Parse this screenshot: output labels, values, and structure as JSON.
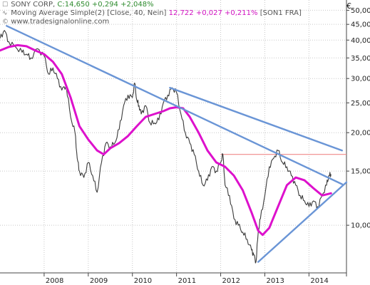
{
  "legend": {
    "line1_name": "SONY CORP,",
    "line1_values": "C:14,650 +0,294 +2,048%",
    "line2_name": "Moving Average Simple(2) [Close, 40, Nein]",
    "line2_values": "12,722 +0,027 +0,211%",
    "line2_tag": "[SON1 FRA]",
    "line3": "www.tradesignalonline.com"
  },
  "colors": {
    "price": "#3a3a3a",
    "moving_average": "#dd11cc",
    "trendline": "#6a95d6",
    "horizontal_line": "#f08a8a",
    "grid": "#c8c8c8"
  },
  "chart_data": {
    "type": "line",
    "title": "SONY CORP",
    "currency_label": "€",
    "scale": "log",
    "grid": true,
    "ylim": [
      7.0,
      54.0
    ],
    "xlim": [
      2007.0,
      2014.85
    ],
    "y_ticks": [
      10,
      15,
      20,
      25,
      30,
      35,
      40,
      45,
      50
    ],
    "y_tick_labels": [
      "10,00",
      "15,00",
      "20,00",
      "25,00",
      "30,00",
      "35,00",
      "40,00",
      "45,00",
      "50,00"
    ],
    "x_ticks": [
      2008,
      2009,
      2010,
      2011,
      2012,
      2013,
      2014
    ],
    "x_tick_labels": [
      "2008",
      "2009",
      "2010",
      "2011",
      "2012",
      "2013",
      "2014"
    ],
    "series": [
      {
        "name": "SONY CORP",
        "x": [
          2007.0,
          2007.1,
          2007.2,
          2007.35,
          2007.5,
          2007.6,
          2007.7,
          2007.85,
          2008.0,
          2008.1,
          2008.2,
          2008.3,
          2008.4,
          2008.5,
          2008.6,
          2008.7,
          2008.75,
          2008.8,
          2008.9,
          2009.0,
          2009.1,
          2009.2,
          2009.3,
          2009.4,
          2009.5,
          2009.6,
          2009.7,
          2009.8,
          2009.9,
          2010.0,
          2010.05,
          2010.1,
          2010.15,
          2010.2,
          2010.3,
          2010.4,
          2010.5,
          2010.6,
          2010.7,
          2010.8,
          2010.9,
          2011.0,
          2011.1,
          2011.2,
          2011.3,
          2011.4,
          2011.5,
          2011.6,
          2011.7,
          2011.8,
          2011.9,
          2012.0,
          2012.05,
          2012.1,
          2012.2,
          2012.3,
          2012.4,
          2012.5,
          2012.6,
          2012.7,
          2012.75,
          2012.8,
          2012.85,
          2012.9,
          2013.0,
          2013.1,
          2013.2,
          2013.3,
          2013.4,
          2013.5,
          2013.6,
          2013.7,
          2013.8,
          2013.9,
          2014.0,
          2014.1,
          2014.2,
          2014.3,
          2014.4,
          2014.45,
          2014.5
        ],
        "values": [
          40.5,
          43.0,
          39.5,
          38.0,
          36.5,
          36.0,
          35.0,
          37.5,
          35.5,
          31.0,
          32.5,
          30.0,
          27.5,
          28.5,
          22.5,
          20.0,
          16.5,
          15.0,
          14.3,
          16.0,
          14.5,
          12.8,
          16.0,
          18.5,
          18.0,
          18.5,
          20.5,
          24.5,
          26.5,
          26.0,
          29.0,
          25.5,
          24.5,
          23.0,
          24.5,
          21.5,
          21.5,
          22.0,
          25.0,
          26.5,
          28.0,
          27.0,
          23.0,
          20.0,
          18.5,
          17.0,
          15.0,
          13.5,
          14.0,
          15.5,
          15.0,
          16.0,
          17.0,
          13.5,
          12.5,
          10.5,
          10.0,
          9.5,
          9.0,
          8.3,
          8.0,
          7.6,
          9.5,
          10.5,
          12.5,
          15.5,
          16.5,
          17.5,
          16.0,
          15.5,
          14.5,
          13.5,
          12.5,
          12.0,
          11.5,
          12.0,
          11.5,
          12.5,
          13.5,
          14.5,
          14.65
        ]
      },
      {
        "name": "Moving Average Simple(2) [Close, 40, Nein]",
        "x": [
          2007.0,
          2007.2,
          2007.4,
          2007.6,
          2007.8,
          2008.0,
          2008.2,
          2008.4,
          2008.6,
          2008.8,
          2009.0,
          2009.2,
          2009.35,
          2009.5,
          2009.7,
          2009.9,
          2010.1,
          2010.3,
          2010.5,
          2010.7,
          2010.85,
          2011.0,
          2011.15,
          2011.3,
          2011.5,
          2011.7,
          2011.9,
          2012.1,
          2012.3,
          2012.5,
          2012.7,
          2012.85,
          2012.95,
          2013.1,
          2013.3,
          2013.5,
          2013.7,
          2013.9,
          2014.1,
          2014.3,
          2014.5
        ],
        "values": [
          37.0,
          38.0,
          38.5,
          38.2,
          37.0,
          36.0,
          34.0,
          31.0,
          26.0,
          21.0,
          19.0,
          17.5,
          17.0,
          17.8,
          18.5,
          19.5,
          21.0,
          22.5,
          23.0,
          23.5,
          24.0,
          24.2,
          24.0,
          22.5,
          20.0,
          17.5,
          16.0,
          15.5,
          14.5,
          13.0,
          11.0,
          9.6,
          9.3,
          9.8,
          11.5,
          13.5,
          14.3,
          14.0,
          13.2,
          12.5,
          12.7
        ]
      }
    ],
    "trendlines": [
      {
        "x": [
          2007.15,
          2014.75
        ],
        "values": [
          44.5,
          13.6
        ]
      },
      {
        "x": [
          2010.85,
          2014.75
        ],
        "values": [
          28.0,
          17.5
        ]
      },
      {
        "x": [
          2012.85,
          2014.85
        ],
        "values": [
          7.6,
          13.8
        ]
      }
    ],
    "horizontal_line": {
      "x": [
        2012.0,
        2014.85
      ],
      "value": 17.0
    }
  }
}
